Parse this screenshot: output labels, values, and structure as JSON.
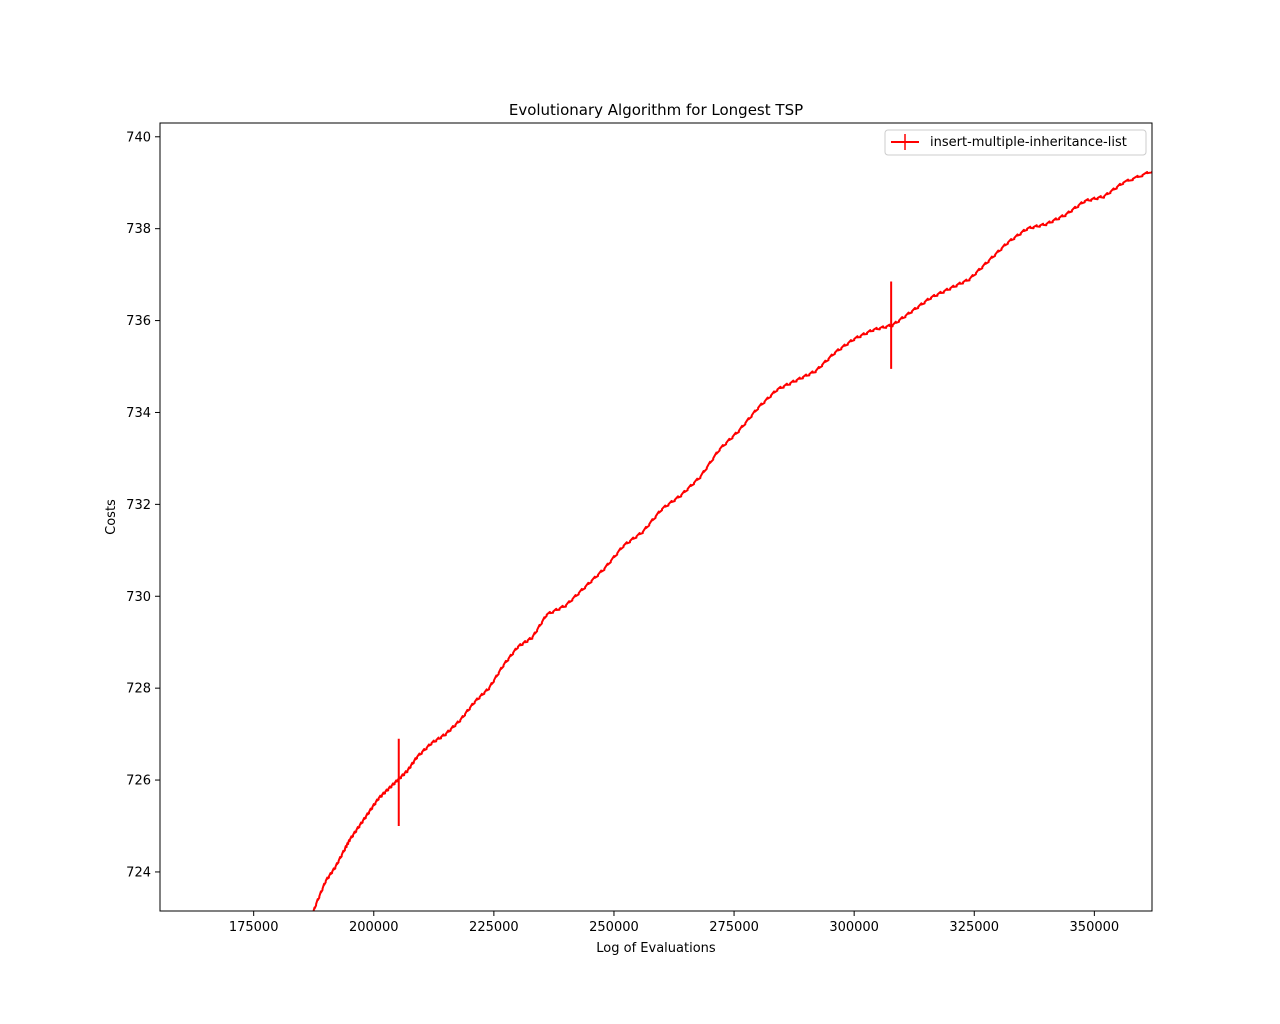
{
  "chart_data": {
    "type": "line",
    "title": "Evolutionary Algorithm for Longest TSP",
    "xlabel": "Log of Evaluations",
    "ylabel": "Costs",
    "xlim": [
      155500,
      362000
    ],
    "ylim": [
      723.15,
      740.3
    ],
    "x_ticks": [
      175000,
      200000,
      225000,
      250000,
      275000,
      300000,
      325000,
      350000
    ],
    "y_ticks": [
      724,
      726,
      728,
      730,
      732,
      734,
      736,
      738,
      740
    ],
    "grid": false,
    "legend_position": "top-right",
    "series": [
      {
        "name": "insert-multiple-inheritance-list",
        "color": "#ff0000",
        "x": [
          186000,
          188000,
          190000,
          192000,
          194000,
          195000,
          197000,
          199000,
          201000,
          203000,
          205000,
          207000,
          209000,
          212000,
          215000,
          218000,
          221000,
          224000,
          227000,
          230000,
          233000,
          236000,
          240000,
          244000,
          248000,
          252000,
          256000,
          260000,
          264000,
          268000,
          272000,
          276000,
          280000,
          284000,
          288000,
          292000,
          296000,
          300000,
          304000,
          308000,
          312000,
          316000,
          320000,
          324000,
          328000,
          332000,
          336000,
          340000,
          344000,
          348000,
          352000,
          356000,
          362000
        ],
        "y": [
          722.7,
          723.3,
          723.8,
          724.1,
          724.5,
          724.7,
          725.0,
          725.3,
          725.6,
          725.8,
          726.0,
          726.2,
          726.5,
          726.8,
          727.0,
          727.3,
          727.7,
          728.0,
          728.5,
          728.9,
          729.1,
          729.6,
          729.8,
          730.2,
          730.6,
          731.1,
          731.4,
          731.9,
          732.2,
          732.6,
          733.2,
          733.6,
          734.1,
          734.5,
          734.7,
          734.9,
          735.3,
          735.6,
          735.8,
          735.9,
          736.2,
          736.5,
          736.7,
          736.9,
          737.3,
          737.7,
          738.0,
          738.1,
          738.3,
          738.6,
          738.7,
          739.0,
          739.25
        ],
        "error_bars": [
          {
            "x": 205200,
            "y": 725.95,
            "err": 0.95
          },
          {
            "x": 307700,
            "y": 735.9,
            "err": 0.95
          }
        ]
      }
    ]
  }
}
